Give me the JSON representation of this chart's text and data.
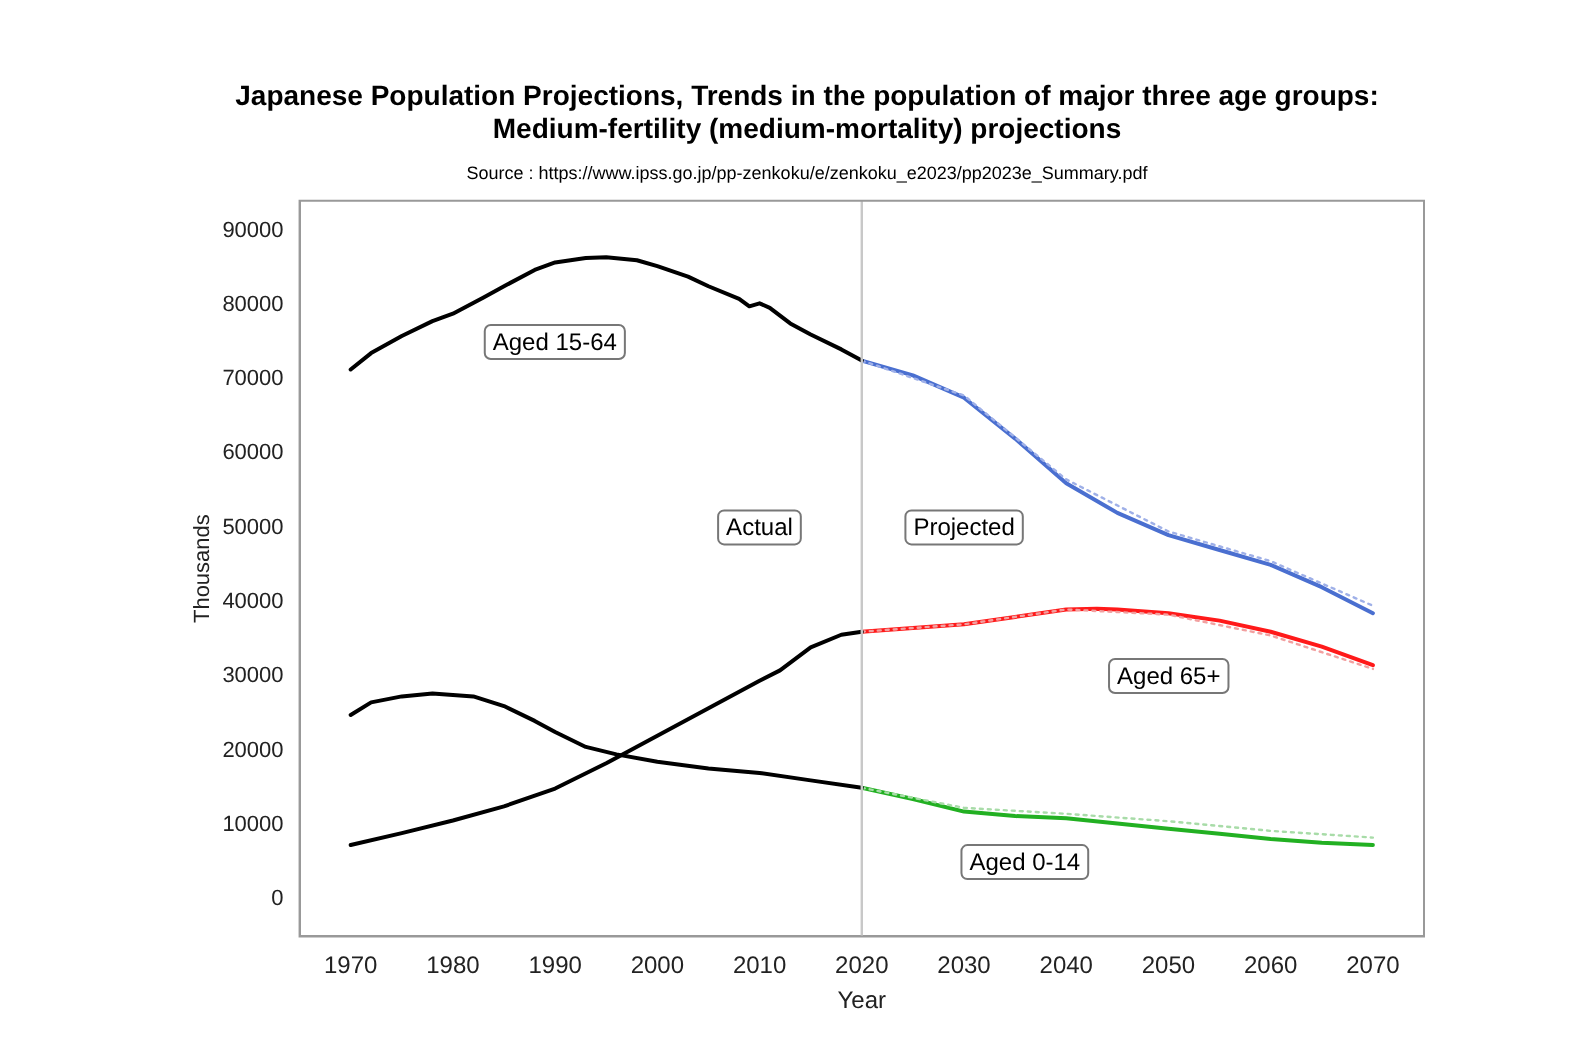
{
  "chart_data": {
    "type": "line",
    "title": "Japanese Population Projections, Trends in the population of major three age groups:\nMedium-fertility (medium-mortality) projections",
    "subtitle": "Source : https://www.ipss.go.jp/pp-zenkoku/e/zenkoku_e2023/pp2023e_Summary.pdf",
    "xlabel": "Year",
    "ylabel": "Thousands",
    "xlim": [
      1965,
      2075
    ],
    "xticks": [
      1970,
      1980,
      1990,
      2000,
      2010,
      2020,
      2030,
      2040,
      2050,
      2060,
      2070
    ],
    "ylim": [
      -5000,
      94000
    ],
    "yticks": [
      0,
      10000,
      20000,
      30000,
      40000,
      50000,
      60000,
      70000,
      80000,
      90000
    ],
    "grid": false,
    "legend": false,
    "marker": "none",
    "line_style": "solid",
    "series": [
      {
        "color": "#000000",
        "x": [
          1970,
          1972,
          1975,
          1978,
          1980,
          1983,
          1985,
          1988,
          1990,
          1993,
          1995,
          1998,
          2000,
          2003,
          2005,
          2008,
          2009,
          2010,
          2011,
          2013,
          2015,
          2018,
          2020
        ],
        "values": [
          71300,
          73500,
          75800,
          77800,
          78800,
          81000,
          82500,
          84700,
          85700,
          86300,
          86400,
          86000,
          85200,
          83800,
          82500,
          80800,
          79800,
          80200,
          79600,
          77500,
          76000,
          74000,
          72500
        ]
      },
      {
        "color": "#000000",
        "x": [
          1970,
          1975,
          1980,
          1985,
          1990,
          1995,
          2000,
          2005,
          2010,
          2012,
          2015,
          2018,
          2020
        ],
        "values": [
          7300,
          8900,
          10600,
          12500,
          14900,
          18300,
          22000,
          25700,
          29400,
          30800,
          33900,
          35600,
          36000
        ]
      },
      {
        "color": "#000000",
        "x": [
          1970,
          1972,
          1975,
          1978,
          1982,
          1985,
          1988,
          1990,
          1993,
          1996,
          2000,
          2005,
          2010,
          2015,
          2020
        ],
        "values": [
          24800,
          26500,
          27300,
          27700,
          27300,
          26000,
          24000,
          22500,
          20500,
          19500,
          18500,
          17600,
          17000,
          16000,
          15000
        ]
      },
      {
        "color": "#9fb0e8",
        "line_style": "dotted",
        "x": [
          2020,
          2030,
          2040,
          2050,
          2060,
          2070
        ],
        "values": [
          72500,
          67800,
          56500,
          49500,
          45500,
          39500
        ]
      },
      {
        "color": "#f2a0a0",
        "line_style": "dotted",
        "x": [
          2020,
          2030,
          2040,
          2050,
          2060,
          2070
        ],
        "values": [
          36000,
          37000,
          39000,
          38300,
          35500,
          31000
        ]
      },
      {
        "color": "#a8dca8",
        "line_style": "dotted",
        "x": [
          2020,
          2030,
          2040,
          2050,
          2060,
          2070
        ],
        "values": [
          15000,
          12300,
          11500,
          10500,
          9200,
          8300
        ]
      },
      {
        "color": "#4a6fd0",
        "x": [
          2020,
          2025,
          2030,
          2035,
          2040,
          2045,
          2050,
          2055,
          2060,
          2065,
          2070
        ],
        "values": [
          72500,
          70500,
          67500,
          62000,
          56000,
          52000,
          49000,
          47000,
          45000,
          42000,
          38500
        ]
      },
      {
        "color": "#ff1a1a",
        "x": [
          2020,
          2025,
          2030,
          2035,
          2040,
          2043,
          2045,
          2050,
          2055,
          2060,
          2065,
          2070
        ],
        "values": [
          36000,
          36500,
          37000,
          38000,
          39000,
          39100,
          39000,
          38500,
          37500,
          36000,
          34000,
          31500
        ]
      },
      {
        "color": "#22b022",
        "x": [
          2020,
          2025,
          2030,
          2035,
          2040,
          2045,
          2050,
          2055,
          2060,
          2065,
          2070
        ],
        "values": [
          15000,
          13500,
          11800,
          11200,
          10900,
          10200,
          9500,
          8800,
          8100,
          7600,
          7300
        ]
      }
    ],
    "ref_lines": [
      {
        "axis": "x",
        "value": 2020,
        "color": "#c8c8c8"
      }
    ],
    "annotations": [
      "Aged 15-64",
      "Actual",
      "Projected",
      "Aged 65+",
      "Aged 0-14"
    ]
  }
}
